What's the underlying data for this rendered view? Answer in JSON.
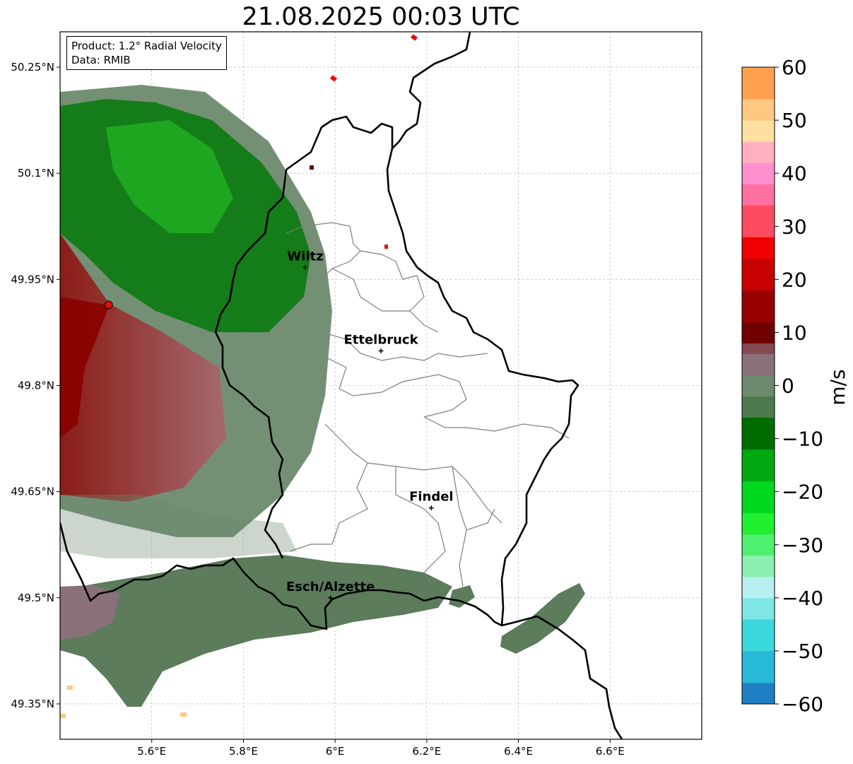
{
  "title": "21.08.2025 00:03 UTC",
  "info": {
    "product": "Product: 1.2° Radial Velocity",
    "source": "Data: RMIB"
  },
  "axes": {
    "x_ticks": [
      {
        "value": 5.6,
        "label": "5.6°E"
      },
      {
        "value": 5.8,
        "label": "5.8°E"
      },
      {
        "value": 6.0,
        "label": "6°E"
      },
      {
        "value": 6.2,
        "label": "6.2°E"
      },
      {
        "value": 6.4,
        "label": "6.4°E"
      },
      {
        "value": 6.6,
        "label": "6.6°E"
      }
    ],
    "y_ticks": [
      {
        "value": 50.25,
        "label": "50.25°N"
      },
      {
        "value": 50.1,
        "label": "50.1°N"
      },
      {
        "value": 49.95,
        "label": "49.95°N"
      },
      {
        "value": 49.8,
        "label": "49.8°N"
      },
      {
        "value": 49.65,
        "label": "49.65°N"
      },
      {
        "value": 49.5,
        "label": "49.5°N"
      },
      {
        "value": 49.35,
        "label": "49.35°N"
      }
    ],
    "lon_range": [
      5.4,
      6.8
    ],
    "lat_range": [
      49.3,
      50.3
    ],
    "grid": true
  },
  "cities": [
    {
      "name": "Wiltz",
      "lon": 5.935,
      "lat": 49.967
    },
    {
      "name": "Ettelbruck",
      "lon": 6.1,
      "lat": 49.849
    },
    {
      "name": "Findel",
      "lon": 6.21,
      "lat": 49.627
    },
    {
      "name": "Esch/Alzette",
      "lon": 5.99,
      "lat": 49.5
    }
  ],
  "radar_site": {
    "lon": 5.506,
    "lat": 49.914,
    "color": "#e01010"
  },
  "colorbar": {
    "label": "m/s",
    "min": -60,
    "max": 60,
    "ticks": [
      {
        "value": 60,
        "label": "60"
      },
      {
        "value": 50,
        "label": "50"
      },
      {
        "value": 40,
        "label": "40"
      },
      {
        "value": 30,
        "label": "30"
      },
      {
        "value": 20,
        "label": "20"
      },
      {
        "value": 10,
        "label": "10"
      },
      {
        "value": 0,
        "label": "0"
      },
      {
        "value": -10,
        "label": "−10"
      },
      {
        "value": -20,
        "label": "−20"
      },
      {
        "value": -30,
        "label": "−30"
      },
      {
        "value": -40,
        "label": "−40"
      },
      {
        "value": -50,
        "label": "−50"
      },
      {
        "value": -60,
        "label": "−60"
      }
    ],
    "stops": [
      {
        "from": -60,
        "to": -56,
        "color": "#1f7fc4"
      },
      {
        "from": -56,
        "to": -50,
        "color": "#28b8d8"
      },
      {
        "from": -50,
        "to": -44,
        "color": "#3ad8dc"
      },
      {
        "from": -44,
        "to": -40,
        "color": "#80e6e6"
      },
      {
        "from": -40,
        "to": -36,
        "color": "#b8f0f0"
      },
      {
        "from": -36,
        "to": -32,
        "color": "#8ef0b0"
      },
      {
        "from": -32,
        "to": -28,
        "color": "#50f070"
      },
      {
        "from": -28,
        "to": -24,
        "color": "#20f030"
      },
      {
        "from": -24,
        "to": -18,
        "color": "#00d820"
      },
      {
        "from": -18,
        "to": -12,
        "color": "#00a810"
      },
      {
        "from": -12,
        "to": -6,
        "color": "#006c00"
      },
      {
        "from": -6,
        "to": -2,
        "color": "#4c7a4c"
      },
      {
        "from": -2,
        "to": 2,
        "color": "#6c8a6c"
      },
      {
        "from": 2,
        "to": 6,
        "color": "#8a7078"
      },
      {
        "from": 6,
        "to": 8,
        "color": "#844a54"
      },
      {
        "from": 8,
        "to": 12,
        "color": "#700000"
      },
      {
        "from": 12,
        "to": 18,
        "color": "#980000"
      },
      {
        "from": 18,
        "to": 24,
        "color": "#c80000"
      },
      {
        "from": 24,
        "to": 28,
        "color": "#f00000"
      },
      {
        "from": 28,
        "to": 34,
        "color": "#ff4a60"
      },
      {
        "from": 34,
        "to": 38,
        "color": "#ff70a0"
      },
      {
        "from": 38,
        "to": 42,
        "color": "#ff90d0"
      },
      {
        "from": 42,
        "to": 46,
        "color": "#ffb0c0"
      },
      {
        "from": 46,
        "to": 50,
        "color": "#ffe0a0"
      },
      {
        "from": 50,
        "to": 54,
        "color": "#ffc880"
      },
      {
        "from": 54,
        "to": 60,
        "color": "#ffa050"
      }
    ]
  },
  "colors": {
    "border": "#000000",
    "canton": "#7f7f7f",
    "grid": "#b0b0b0"
  }
}
